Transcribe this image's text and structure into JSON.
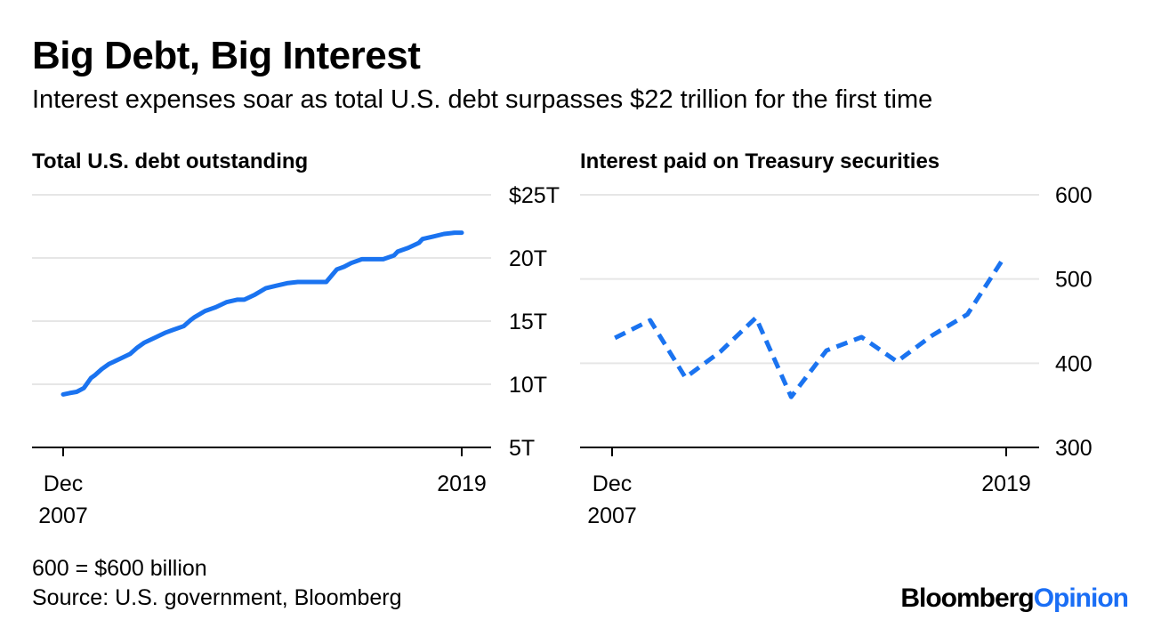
{
  "header": {
    "title": "Big Debt, Big Interest",
    "subtitle": "Interest expenses soar as total U.S. debt surpasses $22 trillion for the first time"
  },
  "footer": {
    "note": "600 = $600 billion",
    "source": "Source: U.S. government, Bloomberg",
    "brand_main": "Bloomberg",
    "brand_accent": "Opinion"
  },
  "colors": {
    "series": "#1a73f0",
    "grid": "#e6e6e6",
    "axis": "#000000"
  },
  "chart_data": [
    {
      "type": "line",
      "title": "Total U.S. debt outstanding",
      "x_labels": [
        [
          "Dec",
          "2007"
        ],
        [
          "2019"
        ]
      ],
      "x_range": [
        2007.92,
        2019.1
      ],
      "ylim": [
        5,
        25
      ],
      "y_ticks": [
        5,
        10,
        15,
        20,
        25
      ],
      "y_tick_labels": [
        "5T",
        "10T",
        "15T",
        "20T",
        "$25T"
      ],
      "line_style": "solid",
      "unit": "trillions of dollars",
      "x": [
        2007.92,
        2008.1,
        2008.3,
        2008.5,
        2008.7,
        2008.8,
        2009.0,
        2009.2,
        2009.5,
        2009.8,
        2010.0,
        2010.2,
        2010.5,
        2010.8,
        2011.0,
        2011.3,
        2011.5,
        2011.6,
        2011.9,
        2012.2,
        2012.5,
        2012.8,
        2013.0,
        2013.3,
        2013.6,
        2013.9,
        2014.2,
        2014.5,
        2014.8,
        2015.0,
        2015.3,
        2015.6,
        2015.8,
        2016.0,
        2016.3,
        2016.6,
        2016.9,
        2017.2,
        2017.3,
        2017.6,
        2017.9,
        2018.0,
        2018.3,
        2018.6,
        2018.9,
        2019.1
      ],
      "values": [
        9.2,
        9.3,
        9.4,
        9.7,
        10.5,
        10.7,
        11.2,
        11.6,
        12.0,
        12.4,
        12.9,
        13.3,
        13.7,
        14.1,
        14.3,
        14.6,
        15.1,
        15.3,
        15.8,
        16.1,
        16.5,
        16.7,
        16.7,
        17.1,
        17.6,
        17.8,
        18.0,
        18.1,
        18.1,
        18.1,
        18.1,
        19.1,
        19.3,
        19.6,
        19.9,
        19.9,
        19.9,
        20.2,
        20.5,
        20.8,
        21.2,
        21.5,
        21.7,
        21.9,
        22.0,
        22.0
      ]
    },
    {
      "type": "line",
      "title": "Interest paid on Treasury securities",
      "x_labels": [
        [
          "Dec",
          "2007"
        ],
        [
          "2019"
        ]
      ],
      "x_range": [
        2007.92,
        2019.1
      ],
      "ylim": [
        300,
        600
      ],
      "y_ticks": [
        300,
        400,
        500,
        600
      ],
      "y_tick_labels": [
        "300",
        "400",
        "500",
        "600"
      ],
      "line_style": "dashed",
      "unit": "billions of dollars",
      "x": [
        2008,
        2009,
        2010,
        2011,
        2012,
        2013,
        2014,
        2015,
        2016,
        2017,
        2018,
        2019
      ],
      "values": [
        430,
        451,
        383,
        414,
        454,
        360,
        415,
        431,
        402,
        433,
        458,
        523
      ]
    }
  ]
}
